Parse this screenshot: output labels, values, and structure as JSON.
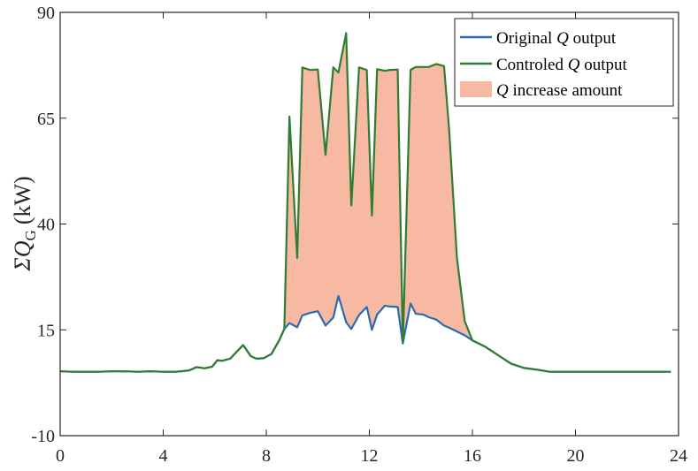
{
  "chart_data": {
    "type": "area",
    "title": "",
    "xlabel": "",
    "ylabel": "ΣQ",
    "ylabel_subscript": "G",
    "ylabel_unit": "(kW)",
    "xlim": [
      0,
      24
    ],
    "ylim": [
      -10,
      90
    ],
    "xticks": [
      0,
      4,
      8,
      12,
      16,
      20,
      24
    ],
    "yticks": [
      -10,
      15,
      40,
      65,
      90
    ],
    "xtick_labels": [
      "0",
      "4",
      "8",
      "12",
      "16",
      "20",
      "24"
    ],
    "ytick_labels": [
      "-10",
      "15",
      "40",
      "65",
      "90"
    ],
    "grid": false,
    "legend_position": "top-right",
    "legend": [
      {
        "pre": "Original ",
        "var": "Q",
        "post": " output",
        "kind": "line",
        "color": "#2b6cb0"
      },
      {
        "pre": "Controled ",
        "var": "Q",
        "post": " output",
        "kind": "line",
        "color": "#2e7d32"
      },
      {
        "pre": "",
        "var": "Q",
        "post": " increase amount",
        "kind": "area",
        "color": "#f7b9a1"
      }
    ],
    "colors": {
      "original": "#2b6cb0",
      "controlled": "#2e7d32",
      "fill": "#f7b9a1",
      "axis": "#262626"
    },
    "series": [
      {
        "name": "Original Q output",
        "points": [
          [
            0.0,
            5.2
          ],
          [
            0.5,
            5.1
          ],
          [
            1.0,
            5.1
          ],
          [
            1.5,
            5.1
          ],
          [
            2.0,
            5.2
          ],
          [
            2.5,
            5.2
          ],
          [
            3.0,
            5.1
          ],
          [
            3.5,
            5.2
          ],
          [
            4.0,
            5.1
          ],
          [
            4.5,
            5.1
          ],
          [
            5.0,
            5.4
          ],
          [
            5.3,
            6.2
          ],
          [
            5.6,
            5.9
          ],
          [
            5.9,
            6.3
          ],
          [
            6.1,
            7.8
          ],
          [
            6.3,
            7.7
          ],
          [
            6.6,
            8.2
          ],
          [
            6.8,
            9.5
          ],
          [
            7.1,
            11.4
          ],
          [
            7.4,
            8.8
          ],
          [
            7.6,
            8.2
          ],
          [
            7.9,
            8.3
          ],
          [
            8.2,
            9.3
          ],
          [
            8.5,
            12.5
          ],
          [
            8.7,
            15.2
          ],
          [
            8.9,
            16.6
          ],
          [
            9.2,
            15.6
          ],
          [
            9.4,
            18.4
          ],
          [
            9.7,
            19.0
          ],
          [
            10.0,
            19.4
          ],
          [
            10.3,
            16.0
          ],
          [
            10.6,
            17.9
          ],
          [
            10.8,
            23.0
          ],
          [
            11.1,
            16.8
          ],
          [
            11.3,
            15.2
          ],
          [
            11.6,
            18.5
          ],
          [
            11.9,
            20.4
          ],
          [
            12.1,
            15.0
          ],
          [
            12.3,
            18.6
          ],
          [
            12.6,
            20.7
          ],
          [
            12.8,
            20.5
          ],
          [
            13.1,
            20.4
          ],
          [
            13.3,
            11.8
          ],
          [
            13.6,
            21.2
          ],
          [
            13.8,
            18.8
          ],
          [
            14.1,
            18.6
          ],
          [
            14.3,
            18.0
          ],
          [
            14.6,
            17.4
          ],
          [
            14.9,
            16.0
          ],
          [
            15.1,
            15.5
          ],
          [
            15.4,
            14.6
          ],
          [
            15.7,
            13.7
          ],
          [
            16.0,
            12.5
          ],
          [
            16.5,
            11.0
          ],
          [
            17.0,
            9.0
          ],
          [
            17.5,
            7.0
          ],
          [
            18.0,
            6.0
          ],
          [
            18.5,
            5.6
          ],
          [
            19.0,
            5.1
          ],
          [
            19.5,
            5.1
          ],
          [
            20.0,
            5.1
          ],
          [
            21.0,
            5.1
          ],
          [
            22.0,
            5.1
          ],
          [
            23.0,
            5.1
          ],
          [
            23.7,
            5.1
          ]
        ]
      },
      {
        "name": "Controled Q output",
        "points": [
          [
            0.0,
            5.2
          ],
          [
            0.5,
            5.1
          ],
          [
            1.0,
            5.1
          ],
          [
            1.5,
            5.1
          ],
          [
            2.0,
            5.2
          ],
          [
            2.5,
            5.2
          ],
          [
            3.0,
            5.1
          ],
          [
            3.5,
            5.2
          ],
          [
            4.0,
            5.1
          ],
          [
            4.5,
            5.1
          ],
          [
            5.0,
            5.4
          ],
          [
            5.3,
            6.2
          ],
          [
            5.6,
            5.9
          ],
          [
            5.9,
            6.3
          ],
          [
            6.1,
            7.8
          ],
          [
            6.3,
            7.7
          ],
          [
            6.6,
            8.2
          ],
          [
            6.8,
            9.5
          ],
          [
            7.1,
            11.4
          ],
          [
            7.4,
            8.8
          ],
          [
            7.6,
            8.2
          ],
          [
            7.9,
            8.3
          ],
          [
            8.2,
            9.3
          ],
          [
            8.5,
            12.5
          ],
          [
            8.7,
            15.2
          ],
          [
            8.9,
            65.4
          ],
          [
            9.2,
            32.0
          ],
          [
            9.4,
            77.0
          ],
          [
            9.7,
            76.4
          ],
          [
            10.0,
            76.5
          ],
          [
            10.3,
            56.3
          ],
          [
            10.6,
            77.0
          ],
          [
            10.8,
            75.8
          ],
          [
            11.1,
            85.1
          ],
          [
            11.3,
            44.4
          ],
          [
            11.6,
            77.0
          ],
          [
            11.9,
            76.4
          ],
          [
            12.1,
            42.0
          ],
          [
            12.3,
            76.6
          ],
          [
            12.6,
            76.2
          ],
          [
            12.8,
            76.4
          ],
          [
            13.1,
            76.5
          ],
          [
            13.3,
            11.8
          ],
          [
            13.6,
            76.4
          ],
          [
            13.8,
            77.1
          ],
          [
            14.1,
            77.1
          ],
          [
            14.3,
            77.1
          ],
          [
            14.6,
            77.8
          ],
          [
            14.9,
            77.3
          ],
          [
            15.1,
            62.0
          ],
          [
            15.4,
            32.0
          ],
          [
            15.7,
            17.1
          ],
          [
            16.0,
            12.5
          ],
          [
            16.5,
            11.0
          ],
          [
            17.0,
            9.0
          ],
          [
            17.5,
            7.0
          ],
          [
            18.0,
            6.0
          ],
          [
            18.5,
            5.6
          ],
          [
            19.0,
            5.1
          ],
          [
            19.5,
            5.1
          ],
          [
            20.0,
            5.1
          ],
          [
            21.0,
            5.1
          ],
          [
            22.0,
            5.1
          ],
          [
            23.0,
            5.1
          ],
          [
            23.7,
            5.1
          ]
        ]
      }
    ]
  }
}
